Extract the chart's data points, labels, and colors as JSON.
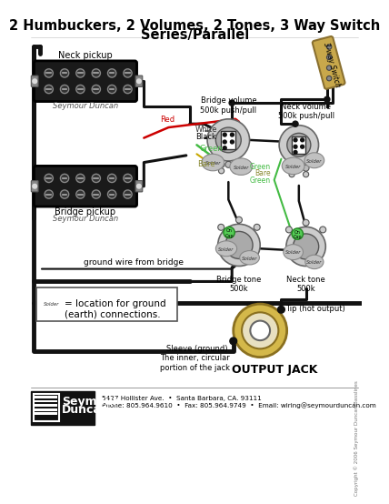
{
  "title_line1": "2 Humbuckers, 2 Volumes, 2 Tones, 3 Way Switch",
  "title_line2": "Series/Parallel",
  "bg_color": "#f5f5f5",
  "footer_line1": "5427 Hollister Ave.  •  Santa Barbara, CA. 93111",
  "footer_line2": "Phone: 805.964.9610  •  Fax: 805.964.9749  •  Email: wiring@seymourduncan.com",
  "copyright": "Copyright © 2006 Seymour Duncan/Basslines",
  "ground_legend": "= location for ground\n(earth) connections.",
  "output_jack_label": "OUTPUT JACK",
  "tip_label": "Tip (hot output)",
  "sleeve_label": "Sleeve (ground).\nThe inner, circular\nportion of the jack",
  "neck_pickup_label": "Neck pickup",
  "bridge_pickup_label": "Bridge pickup",
  "seymour_duncan_label": "Seymour Duncan",
  "bridge_vol_label": "Bridge volume\n500k push/pull",
  "neck_vol_label": "Neck volume\n500k push/pull",
  "bridge_tone_label": "Bridge tone\n500k",
  "neck_tone_label": "Neck tone\n500k",
  "ground_wire_label": "ground wire from bridge",
  "switch_label": "3-way Switch",
  "wire_red": "#cc0000",
  "wire_green": "#44bb44",
  "wire_bare": "#c8a800",
  "wire_black": "#111111",
  "wire_white": "#ffffff",
  "solder_fill": "#c0c0c0",
  "solder_edge": "#888888",
  "pot_outer": "#cccccc",
  "pot_inner": "#aaaaaa",
  "pickup_fill": "#1a1a1a",
  "switch_fill": "#c8a84b",
  "switch_edge": "#8a7030"
}
